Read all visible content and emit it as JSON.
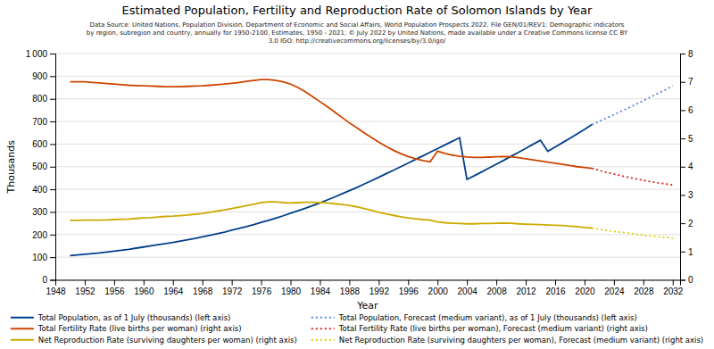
{
  "chart_data": {
    "type": "line",
    "title": "Estimated Population, Fertility and Reproduction Rate of Solomon Islands by Year",
    "subtitle": "Data Source: United Nations, Population Division, Department of Economic and Social Affairs, World Population Prospects 2022, File GEN/01/REV1: Demographic indicators\nby region, subregion and country, annually for 1950-2100, Estimates, 1950 - 2021; © July 2022 by United Nations, made available under a Creative Commons license CC BY\n3.0 IGO: http://creativecommons.org/licenses/by/3.0/igo/",
    "xlabel": "Year",
    "ylabel": "Thousands",
    "xlim": [
      1948,
      2033
    ],
    "xticks": [
      1948,
      1952,
      1956,
      1960,
      1964,
      1968,
      1972,
      1976,
      1980,
      1984,
      1988,
      1992,
      1996,
      2000,
      2004,
      2008,
      2012,
      2016,
      2020,
      2024,
      2028,
      2032
    ],
    "ylim": [
      0,
      1000
    ],
    "yticks": [
      0,
      100,
      200,
      300,
      400,
      500,
      600,
      700,
      800,
      900,
      {
        "value": 1000,
        "label": "1 000"
      }
    ],
    "y2lim": [
      0,
      8
    ],
    "y2ticks": [
      0,
      1,
      2,
      3,
      4,
      5,
      6,
      7,
      8
    ],
    "grid": true,
    "legend": "bottom",
    "series": [
      {
        "name": "Total Population, as of 1 July (thousands) (left axis)",
        "color": "#003f8c",
        "line_style": "solid",
        "axis": "y",
        "x": [
          1950,
          1951,
          1952,
          1953,
          1954,
          1955,
          1956,
          1957,
          1958,
          1959,
          1960,
          1961,
          1962,
          1963,
          1964,
          1965,
          1966,
          1967,
          1968,
          1969,
          1970,
          1971,
          1972,
          1973,
          1974,
          1975,
          1976,
          1977,
          1978,
          1979,
          1980,
          1981,
          1982,
          1983,
          1984,
          1985,
          1986,
          1987,
          1988,
          1989,
          1990,
          1991,
          1992,
          1993,
          1994,
          1995,
          1996,
          1997,
          1998,
          1999,
          2000,
          2001,
          2002,
          2003,
          2004,
          2005,
          2006,
          2007,
          2008,
          2009,
          2010,
          2011,
          2012,
          2013,
          2014,
          2015,
          2016,
          2017,
          2018,
          2019,
          2020,
          2021
        ],
        "values": [
          107,
          110,
          113,
          116,
          119,
          123,
          127,
          131,
          135,
          140,
          145,
          150,
          155,
          160,
          165,
          171,
          177,
          183,
          190,
          197,
          204,
          211,
          219,
          227,
          235,
          244,
          254,
          263,
          273,
          283,
          294,
          305,
          316,
          328,
          340,
          353,
          366,
          380,
          394,
          408,
          423,
          438,
          453,
          469,
          484,
          500,
          516,
          532,
          548,
          564,
          580,
          596,
          612,
          628,
          444,
          460,
          477,
          494,
          511,
          528,
          546,
          563,
          581,
          599,
          617,
          568,
          587,
          606,
          625,
          645,
          665,
          686
        ]
      },
      {
        "name": "Total Population, Forecast (medium variant), as of 1 July (thousands) (left axis)",
        "color": "#5588dd",
        "line_style": "dotted",
        "axis": "y",
        "x": [
          2021,
          2022,
          2023,
          2024,
          2025,
          2026,
          2027,
          2028,
          2029,
          2030,
          2031,
          2032
        ],
        "values": [
          686,
          700,
          715,
          730,
          745,
          760,
          776,
          792,
          808,
          824,
          840,
          857
        ]
      },
      {
        "name": "Total Fertility Rate (live births per woman) (right axis)",
        "color": "#cc4400",
        "line_style": "solid",
        "axis": "y2",
        "x": [
          1950,
          1951,
          1952,
          1953,
          1954,
          1955,
          1956,
          1957,
          1958,
          1959,
          1960,
          1961,
          1962,
          1963,
          1964,
          1965,
          1966,
          1967,
          1968,
          1969,
          1970,
          1971,
          1972,
          1973,
          1974,
          1975,
          1976,
          1977,
          1978,
          1979,
          1980,
          1981,
          1982,
          1983,
          1984,
          1985,
          1986,
          1987,
          1988,
          1989,
          1990,
          1991,
          1992,
          1993,
          1994,
          1995,
          1996,
          1997,
          1998,
          1999,
          2000,
          2001,
          2002,
          2003,
          2004,
          2005,
          2006,
          2007,
          2008,
          2009,
          2010,
          2011,
          2012,
          2013,
          2014,
          2015,
          2016,
          2017,
          2018,
          2019,
          2020,
          2021
        ],
        "values": [
          7.0,
          7.0,
          7.0,
          6.98,
          6.96,
          6.94,
          6.92,
          6.9,
          6.88,
          6.87,
          6.86,
          6.85,
          6.84,
          6.83,
          6.83,
          6.83,
          6.84,
          6.85,
          6.86,
          6.88,
          6.9,
          6.92,
          6.95,
          6.98,
          7.02,
          7.05,
          7.08,
          7.08,
          7.05,
          7.0,
          6.92,
          6.8,
          6.65,
          6.48,
          6.3,
          6.12,
          5.93,
          5.74,
          5.55,
          5.38,
          5.2,
          5.03,
          4.87,
          4.72,
          4.58,
          4.46,
          4.36,
          4.28,
          4.22,
          4.17,
          4.55,
          4.47,
          4.41,
          4.37,
          4.34,
          4.33,
          4.33,
          4.34,
          4.35,
          4.36,
          4.35,
          4.32,
          4.28,
          4.24,
          4.2,
          4.16,
          4.12,
          4.08,
          4.04,
          4.0,
          3.97,
          3.94
        ]
      },
      {
        "name": "Total Fertility Rate (live births per woman), Forecast (medium variant) (right axis)",
        "color": "#dd2222",
        "line_style": "dotted",
        "axis": "y2",
        "x": [
          2021,
          2022,
          2023,
          2024,
          2025,
          2026,
          2027,
          2028,
          2029,
          2030,
          2031,
          2032
        ],
        "values": [
          3.94,
          3.87,
          3.8,
          3.74,
          3.68,
          3.62,
          3.57,
          3.52,
          3.47,
          3.43,
          3.39,
          3.35
        ]
      },
      {
        "name": "Net Reproduction Rate (surviving daughters per woman) (right axis)",
        "color": "#ccaa00",
        "line_style": "solid",
        "axis": "y2",
        "x": [
          1950,
          1951,
          1952,
          1953,
          1954,
          1955,
          1956,
          1957,
          1958,
          1959,
          1960,
          1961,
          1962,
          1963,
          1964,
          1965,
          1966,
          1967,
          1968,
          1969,
          1970,
          1971,
          1972,
          1973,
          1974,
          1975,
          1976,
          1977,
          1978,
          1979,
          1980,
          1981,
          1982,
          1983,
          1984,
          1985,
          1986,
          1987,
          1988,
          1989,
          1990,
          1991,
          1992,
          1993,
          1994,
          1995,
          1996,
          1997,
          1998,
          1999,
          2000,
          2001,
          2002,
          2003,
          2004,
          2005,
          2006,
          2007,
          2008,
          2009,
          2010,
          2011,
          2012,
          2013,
          2014,
          2015,
          2016,
          2017,
          2018,
          2019,
          2020,
          2021
        ],
        "values": [
          2.1,
          2.1,
          2.11,
          2.11,
          2.11,
          2.12,
          2.13,
          2.14,
          2.15,
          2.17,
          2.19,
          2.2,
          2.22,
          2.24,
          2.25,
          2.27,
          2.29,
          2.32,
          2.35,
          2.39,
          2.43,
          2.47,
          2.52,
          2.57,
          2.62,
          2.67,
          2.73,
          2.76,
          2.76,
          2.73,
          2.72,
          2.73,
          2.74,
          2.74,
          2.73,
          2.72,
          2.69,
          2.66,
          2.63,
          2.58,
          2.52,
          2.46,
          2.39,
          2.33,
          2.28,
          2.23,
          2.19,
          2.16,
          2.13,
          2.11,
          2.05,
          2.02,
          2.0,
          1.99,
          1.98,
          1.98,
          1.99,
          1.99,
          2.0,
          2.01,
          2.0,
          1.98,
          1.97,
          1.96,
          1.95,
          1.94,
          1.93,
          1.92,
          1.9,
          1.88,
          1.85,
          1.83
        ]
      },
      {
        "name": "Net Reproduction Rate (surviving daughters per woman), Forecast (medium variant) (right axis)",
        "color": "#ddcc00",
        "line_style": "dotted",
        "axis": "y2",
        "x": [
          2021,
          2022,
          2023,
          2024,
          2025,
          2026,
          2027,
          2028,
          2029,
          2030,
          2031,
          2032
        ],
        "values": [
          1.83,
          1.79,
          1.75,
          1.71,
          1.68,
          1.65,
          1.61,
          1.58,
          1.55,
          1.53,
          1.5,
          1.47
        ]
      }
    ]
  }
}
